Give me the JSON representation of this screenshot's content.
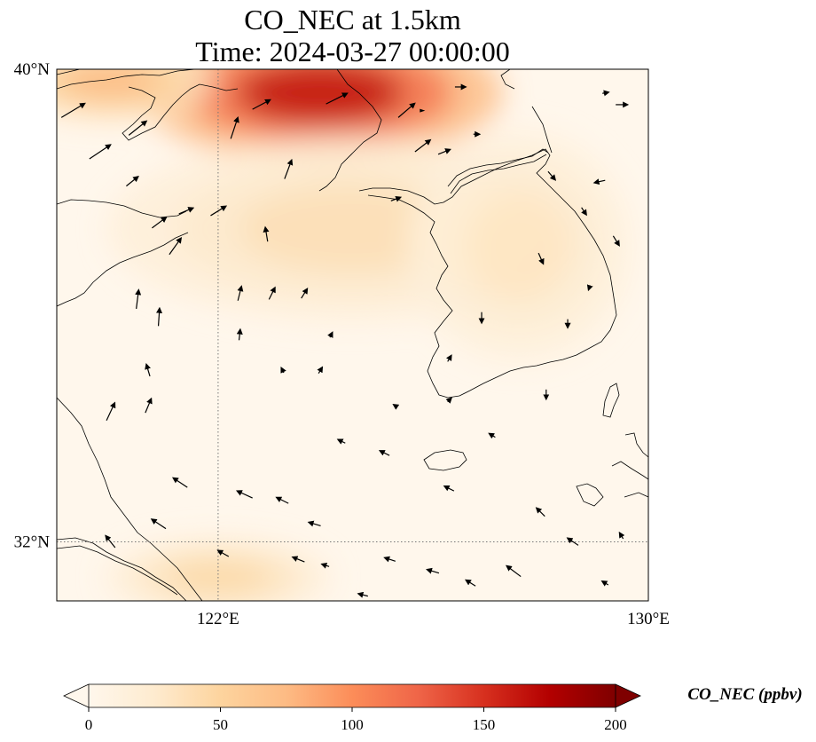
{
  "title": {
    "line1": "CO_NEC at 1.5km",
    "line2": "Time: 2024-03-27 00:00:00"
  },
  "map": {
    "lon_range": [
      119,
      130
    ],
    "lat_range": [
      31,
      40
    ],
    "lat_ticks": [
      {
        "value": 40,
        "label": "40°N"
      },
      {
        "value": 32,
        "label": "32°N"
      }
    ],
    "lon_ticks": [
      {
        "value": 122,
        "label": "122°E"
      },
      {
        "value": 130,
        "label": "130°E"
      }
    ],
    "gridlines": {
      "lon": [
        122
      ],
      "lat": [
        32
      ],
      "style": "dotted"
    },
    "colormap": "OrRd"
  },
  "colorbar": {
    "label": "CO_NEC (ppbv)",
    "min": 0,
    "max": 200,
    "ticks": [
      "0",
      "50",
      "100",
      "150",
      "200"
    ],
    "tick_values": [
      0,
      50,
      100,
      150,
      200
    ],
    "extend": "both",
    "stops": [
      {
        "v": 0,
        "c": "#fff7ec"
      },
      {
        "v": 25,
        "c": "#feebcf"
      },
      {
        "v": 50,
        "c": "#fdd49e"
      },
      {
        "v": 75,
        "c": "#fdbb84"
      },
      {
        "v": 100,
        "c": "#fc8d59"
      },
      {
        "v": 125,
        "c": "#ef6548"
      },
      {
        "v": 150,
        "c": "#d7301f"
      },
      {
        "v": 175,
        "c": "#b30000"
      },
      {
        "v": 200,
        "c": "#7f0000"
      }
    ]
  },
  "hotspots": [
    {
      "lon": 123.9,
      "lat": 39.6,
      "value": 165,
      "rx": 2.6,
      "ry": 0.9
    },
    {
      "lon": 120.0,
      "lat": 39.8,
      "value": 75,
      "rx": 1.5,
      "ry": 0.5
    },
    {
      "lon": 124.5,
      "lat": 37.3,
      "value": 38,
      "rx": 3.5,
      "ry": 1.2
    },
    {
      "lon": 122.0,
      "lat": 31.4,
      "value": 45,
      "rx": 1.6,
      "ry": 0.5
    },
    {
      "lon": 127.6,
      "lat": 37.0,
      "value": 32,
      "rx": 1.6,
      "ry": 1.5
    }
  ],
  "wind_vectors": [
    {
      "lon": 119.3,
      "lat": 39.3,
      "u": 2.0,
      "v": 1.2
    },
    {
      "lon": 119.8,
      "lat": 38.6,
      "u": 1.8,
      "v": 1.2
    },
    {
      "lon": 120.5,
      "lat": 39.0,
      "u": 1.5,
      "v": 1.2
    },
    {
      "lon": 120.4,
      "lat": 38.1,
      "u": 1.0,
      "v": 0.8
    },
    {
      "lon": 120.9,
      "lat": 37.4,
      "u": 1.2,
      "v": 0.9
    },
    {
      "lon": 121.4,
      "lat": 37.6,
      "u": 1.2,
      "v": 0.5
    },
    {
      "lon": 121.2,
      "lat": 37.0,
      "u": 1.0,
      "v": 1.4
    },
    {
      "lon": 122.0,
      "lat": 37.6,
      "u": 1.3,
      "v": 0.8
    },
    {
      "lon": 122.3,
      "lat": 39.0,
      "u": 0.6,
      "v": 1.8
    },
    {
      "lon": 122.8,
      "lat": 39.4,
      "u": 1.5,
      "v": 0.8
    },
    {
      "lon": 123.3,
      "lat": 38.3,
      "u": 0.6,
      "v": 1.6
    },
    {
      "lon": 124.2,
      "lat": 39.5,
      "u": 1.8,
      "v": 0.9
    },
    {
      "lon": 125.5,
      "lat": 39.3,
      "u": 1.4,
      "v": 1.2
    },
    {
      "lon": 125.8,
      "lat": 38.7,
      "u": 1.3,
      "v": 1.0
    },
    {
      "lon": 126.2,
      "lat": 38.6,
      "u": 1.0,
      "v": 0.4
    },
    {
      "lon": 125.3,
      "lat": 37.8,
      "u": 0.8,
      "v": 0.3
    },
    {
      "lon": 122.9,
      "lat": 37.2,
      "u": -0.2,
      "v": 1.2
    },
    {
      "lon": 120.5,
      "lat": 36.1,
      "u": 0.2,
      "v": 1.6
    },
    {
      "lon": 120.9,
      "lat": 35.8,
      "u": 0.1,
      "v": 1.5
    },
    {
      "lon": 122.4,
      "lat": 36.2,
      "u": 0.3,
      "v": 1.2
    },
    {
      "lon": 123.0,
      "lat": 36.2,
      "u": 0.5,
      "v": 1.0
    },
    {
      "lon": 123.6,
      "lat": 36.2,
      "u": 0.5,
      "v": 0.8
    },
    {
      "lon": 124.1,
      "lat": 35.5,
      "u": 0.2,
      "v": 0.4
    },
    {
      "lon": 123.9,
      "lat": 34.9,
      "u": 0.3,
      "v": 0.5
    },
    {
      "lon": 120.7,
      "lat": 34.9,
      "u": -0.3,
      "v": 1.0
    },
    {
      "lon": 122.4,
      "lat": 35.5,
      "u": 0.1,
      "v": 0.9
    },
    {
      "lon": 120.0,
      "lat": 34.2,
      "u": 0.7,
      "v": 1.5
    },
    {
      "lon": 120.7,
      "lat": 34.3,
      "u": 0.5,
      "v": 1.2
    },
    {
      "lon": 123.2,
      "lat": 34.9,
      "u": -0.2,
      "v": 0.4
    },
    {
      "lon": 124.3,
      "lat": 33.7,
      "u": -0.6,
      "v": 0.3
    },
    {
      "lon": 125.1,
      "lat": 33.5,
      "u": -0.8,
      "v": 0.4
    },
    {
      "lon": 125.3,
      "lat": 34.3,
      "u": -0.3,
      "v": 0.2
    },
    {
      "lon": 126.3,
      "lat": 34.4,
      "u": 0.3,
      "v": 0.3
    },
    {
      "lon": 121.3,
      "lat": 33.0,
      "u": -1.2,
      "v": 0.8
    },
    {
      "lon": 122.5,
      "lat": 32.8,
      "u": -1.3,
      "v": 0.6
    },
    {
      "lon": 123.2,
      "lat": 32.7,
      "u": -1.0,
      "v": 0.5
    },
    {
      "lon": 123.8,
      "lat": 32.3,
      "u": -1.0,
      "v": 0.3
    },
    {
      "lon": 120.0,
      "lat": 32.0,
      "u": -0.8,
      "v": 1.0
    },
    {
      "lon": 120.9,
      "lat": 32.3,
      "u": -1.2,
      "v": 0.8
    },
    {
      "lon": 122.1,
      "lat": 31.8,
      "u": -0.9,
      "v": 0.5
    },
    {
      "lon": 123.5,
      "lat": 31.7,
      "u": -1.0,
      "v": 0.4
    },
    {
      "lon": 124.7,
      "lat": 31.1,
      "u": -0.8,
      "v": 0.2
    },
    {
      "lon": 124.0,
      "lat": 31.6,
      "u": -0.6,
      "v": 0.2
    },
    {
      "lon": 125.2,
      "lat": 31.7,
      "u": -0.9,
      "v": 0.3
    },
    {
      "lon": 126.0,
      "lat": 31.5,
      "u": -1.0,
      "v": 0.3
    },
    {
      "lon": 126.3,
      "lat": 32.9,
      "u": -0.8,
      "v": 0.4
    },
    {
      "lon": 127.1,
      "lat": 33.8,
      "u": -0.5,
      "v": 0.3
    },
    {
      "lon": 126.7,
      "lat": 31.3,
      "u": -0.8,
      "v": 0.5
    },
    {
      "lon": 127.5,
      "lat": 31.5,
      "u": -1.2,
      "v": 0.9
    },
    {
      "lon": 128.0,
      "lat": 32.5,
      "u": -0.7,
      "v": 0.7
    },
    {
      "lon": 128.6,
      "lat": 32.0,
      "u": -0.9,
      "v": 0.6
    },
    {
      "lon": 129.2,
      "lat": 31.3,
      "u": -0.5,
      "v": 0.3
    },
    {
      "lon": 129.5,
      "lat": 32.1,
      "u": -0.3,
      "v": 0.5
    },
    {
      "lon": 128.1,
      "lat": 34.5,
      "u": 0.0,
      "v": -0.8
    },
    {
      "lon": 128.5,
      "lat": 35.7,
      "u": 0.0,
      "v": -0.7
    },
    {
      "lon": 128.9,
      "lat": 36.3,
      "u": -0.1,
      "v": -0.3
    },
    {
      "lon": 128.0,
      "lat": 36.8,
      "u": 0.4,
      "v": -0.9
    },
    {
      "lon": 128.8,
      "lat": 37.6,
      "u": 0.4,
      "v": -0.6
    },
    {
      "lon": 129.4,
      "lat": 37.1,
      "u": 0.5,
      "v": -0.8
    },
    {
      "lon": 128.2,
      "lat": 38.2,
      "u": 0.6,
      "v": -0.7
    },
    {
      "lon": 125.8,
      "lat": 39.3,
      "u": 0.0,
      "v": 0.0
    },
    {
      "lon": 126.5,
      "lat": 39.7,
      "u": 0.9,
      "v": 0.0
    },
    {
      "lon": 129.2,
      "lat": 39.6,
      "u": 0.5,
      "v": 0.1
    },
    {
      "lon": 129.5,
      "lat": 39.4,
      "u": 1.0,
      "v": 0.0
    },
    {
      "lon": 129.1,
      "lat": 38.1,
      "u": -0.9,
      "v": -0.2
    },
    {
      "lon": 126.8,
      "lat": 38.9,
      "u": 0.5,
      "v": 0.0
    },
    {
      "lon": 126.9,
      "lat": 35.8,
      "u": 0.0,
      "v": -0.9
    },
    {
      "lon": 126.3,
      "lat": 35.1,
      "u": 0.3,
      "v": 0.5
    }
  ]
}
